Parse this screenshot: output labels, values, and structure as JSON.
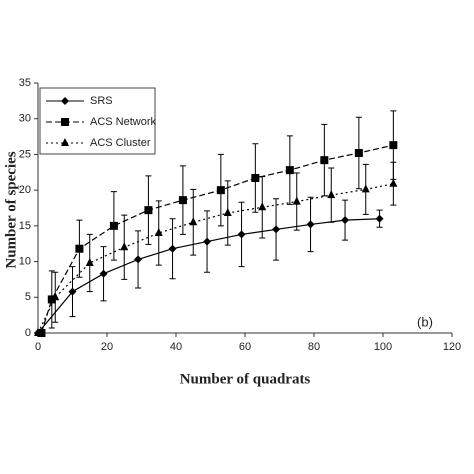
{
  "chart_data": {
    "type": "line",
    "x_label": "Number of quadrats",
    "y_label": "Number of species",
    "annotation": "(b)",
    "xlim": [
      0,
      120
    ],
    "xticks": [
      0,
      20,
      40,
      60,
      80,
      100,
      120
    ],
    "ylim": [
      0,
      35
    ],
    "yticks": [
      0,
      5,
      10,
      15,
      20,
      25,
      30,
      35
    ],
    "grid": false,
    "legend": "upper left",
    "series": [
      {
        "name": "SRS",
        "color": "#000000",
        "marker": "diamond",
        "dash": "solid",
        "x": [
          0,
          10,
          19,
          29,
          39,
          49,
          59,
          69,
          79,
          89,
          99
        ],
        "values": [
          0,
          5.8,
          8.3,
          10.3,
          11.8,
          12.8,
          13.8,
          14.5,
          15.2,
          15.8,
          16.0
        ],
        "errors": [
          0,
          3.5,
          3.8,
          4,
          4.2,
          4.3,
          4.5,
          4.3,
          3.8,
          2.8,
          1.2
        ]
      },
      {
        "name": "ACS Network",
        "color": "#000000",
        "marker": "square",
        "dash": "dashed",
        "x": [
          1,
          4,
          12,
          22,
          32,
          42,
          53,
          63,
          73,
          83,
          93,
          103
        ],
        "values": [
          0,
          4.7,
          11.8,
          15,
          17.2,
          18.6,
          20,
          21.7,
          22.8,
          24.2,
          25.2,
          26.3
        ],
        "errors": [
          0,
          4,
          4,
          4.8,
          4.8,
          4.8,
          5,
          4.8,
          4.8,
          5,
          5,
          4.8
        ]
      },
      {
        "name": "ACS Cluster",
        "color": "#000000",
        "marker": "triangle",
        "dash": "dotted",
        "x": [
          0,
          5,
          15,
          25,
          35,
          45,
          55,
          65,
          75,
          85,
          95,
          103
        ],
        "values": [
          0,
          5,
          9.8,
          12,
          14,
          15.5,
          16.8,
          17.6,
          18.4,
          19.3,
          20.1,
          20.9
        ],
        "errors": [
          0,
          3.5,
          4,
          4.5,
          4.5,
          4.6,
          4.5,
          4.3,
          4,
          3.8,
          3.5,
          3
        ]
      }
    ]
  }
}
